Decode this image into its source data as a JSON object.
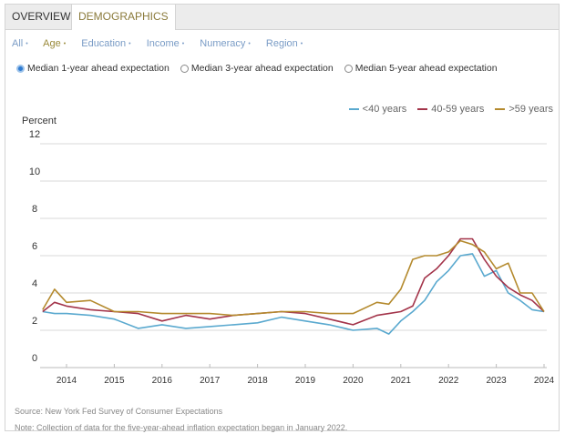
{
  "tabs": [
    {
      "label": "OVERVIEW",
      "active": false
    },
    {
      "label": "DEMOGRAPHICS",
      "active": true
    }
  ],
  "filters": [
    {
      "label": "All",
      "selected": false
    },
    {
      "label": "Age",
      "selected": true
    },
    {
      "label": "Education",
      "selected": false
    },
    {
      "label": "Income",
      "selected": false
    },
    {
      "label": "Numeracy",
      "selected": false
    },
    {
      "label": "Region",
      "selected": false
    }
  ],
  "filter_dot": "•",
  "radios": [
    {
      "label": "Median 1-year ahead expectation",
      "checked": true
    },
    {
      "label": "Median 3-year ahead expectation",
      "checked": false
    },
    {
      "label": "Median 5-year ahead expectation",
      "checked": false
    }
  ],
  "source": "Source: New York Fed Survey of Consumer Expectations",
  "note": "Note: Collection of data for the five-year-ahead inflation expectation began in January 2022.",
  "chart_data": {
    "type": "line",
    "ylabel": "Percent",
    "ylim": [
      0,
      12
    ],
    "yticks": [
      "0",
      "2",
      "4",
      "6",
      "8",
      "10",
      "12"
    ],
    "xticks": [
      "2014",
      "2015",
      "2016",
      "2017",
      "2018",
      "2019",
      "2020",
      "2021",
      "2022",
      "2023",
      "2024"
    ],
    "grid": true,
    "legend_position": "top-right",
    "x": [
      "2013-07",
      "2013-10",
      "2014-01",
      "2014-07",
      "2015-01",
      "2015-07",
      "2016-01",
      "2016-07",
      "2017-01",
      "2017-07",
      "2018-01",
      "2018-07",
      "2019-01",
      "2019-07",
      "2020-01",
      "2020-07",
      "2020-10",
      "2021-01",
      "2021-04",
      "2021-07",
      "2021-10",
      "2022-01",
      "2022-04",
      "2022-07",
      "2022-10",
      "2023-01",
      "2023-04",
      "2023-07",
      "2023-10",
      "2024-01"
    ],
    "series": [
      {
        "name": "<40 years",
        "color": "#5aa9cf",
        "values": [
          3.0,
          2.9,
          2.9,
          2.8,
          2.6,
          2.1,
          2.3,
          2.1,
          2.2,
          2.3,
          2.4,
          2.7,
          2.5,
          2.3,
          2.0,
          2.1,
          1.8,
          2.5,
          3.0,
          3.6,
          4.6,
          5.2,
          6.0,
          6.1,
          4.9,
          5.2,
          4.0,
          3.6,
          3.1,
          3.0
        ]
      },
      {
        "name": "40-59 years",
        "color": "#a3344a",
        "values": [
          3.0,
          3.5,
          3.3,
          3.1,
          3.0,
          2.9,
          2.5,
          2.8,
          2.6,
          2.8,
          2.9,
          3.0,
          2.9,
          2.6,
          2.3,
          2.8,
          2.9,
          3.0,
          3.3,
          4.8,
          5.3,
          6.0,
          6.9,
          6.9,
          5.8,
          4.9,
          4.3,
          3.9,
          3.6,
          3.0
        ]
      },
      {
        "name": ">59 years",
        "color": "#b48a2e",
        "values": [
          3.1,
          4.2,
          3.5,
          3.6,
          3.0,
          3.0,
          2.9,
          2.9,
          2.9,
          2.8,
          2.9,
          3.0,
          3.0,
          2.9,
          2.9,
          3.5,
          3.4,
          4.2,
          5.8,
          6.0,
          6.0,
          6.2,
          6.8,
          6.6,
          6.2,
          5.3,
          5.6,
          4.0,
          4.0,
          3.0
        ]
      }
    ]
  }
}
